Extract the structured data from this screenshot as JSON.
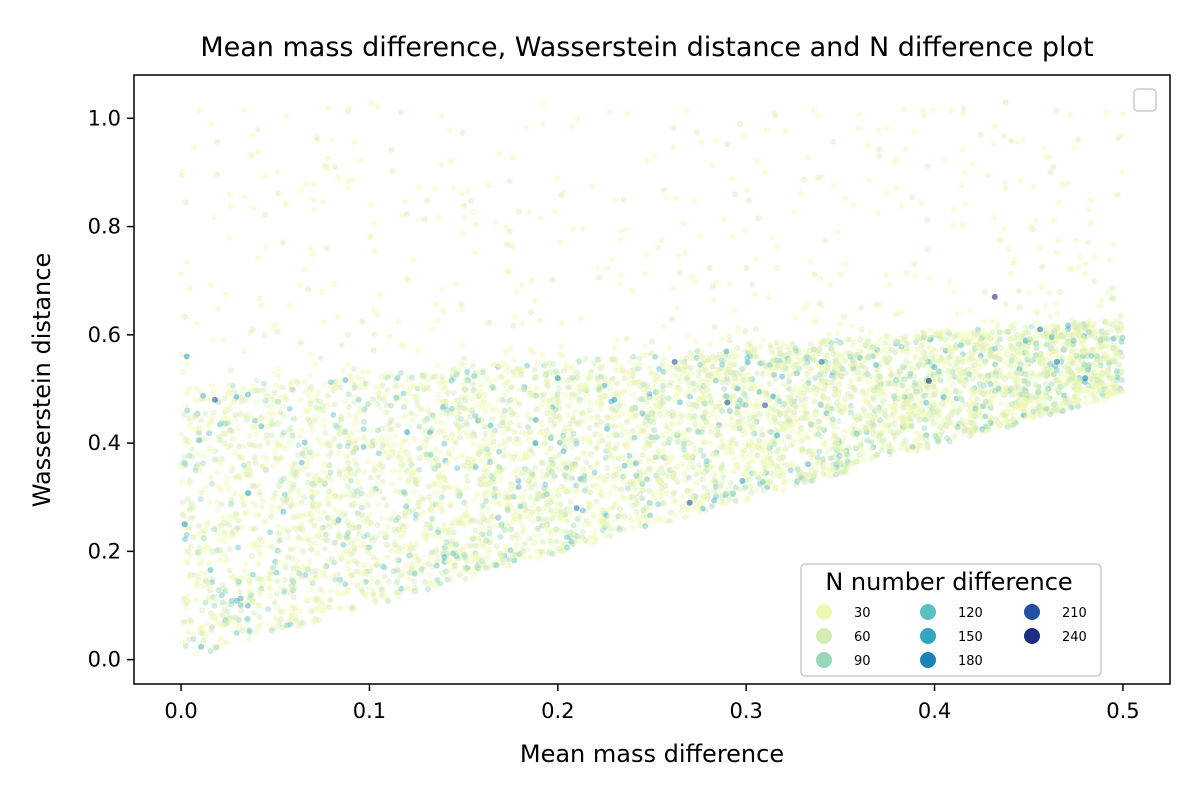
{
  "chart_data": {
    "type": "scatter",
    "title": "Mean mass difference, Wasserstein distance and N difference plot",
    "xlabel": "Mean mass difference",
    "ylabel": "Wasserstein distance",
    "xlim": [
      -0.025,
      0.525
    ],
    "ylim": [
      -0.045,
      1.08
    ],
    "xticks": [
      "0.0",
      "0.1",
      "0.2",
      "0.3",
      "0.4",
      "0.5"
    ],
    "yticks": [
      "0.0",
      "0.2",
      "0.4",
      "0.6",
      "0.8",
      "1.0"
    ],
    "grid": false,
    "legend_placement": "lower-right",
    "empty_legend_placement": "upper-right",
    "colorscale": "YlGnBu",
    "legend": {
      "title": "N number difference",
      "entries": [
        {
          "label": "30",
          "color": "#edf8b1"
        },
        {
          "label": "60",
          "color": "#d2ecb4"
        },
        {
          "label": "90",
          "color": "#97d6b9"
        },
        {
          "label": "120",
          "color": "#5bc0c0"
        },
        {
          "label": "150",
          "color": "#31a5c2"
        },
        {
          "label": "180",
          "color": "#1e80b8"
        },
        {
          "label": "210",
          "color": "#2350a2"
        },
        {
          "label": "240",
          "color": "#1e2e82"
        }
      ]
    },
    "distribution": {
      "x_range": [
        0.0,
        0.5
      ],
      "dense_band_lower": [
        [
          0.0,
          0.0
        ],
        [
          0.5,
          0.49
        ]
      ],
      "dense_band_upper": [
        [
          0.0,
          0.5
        ],
        [
          0.5,
          0.63
        ]
      ],
      "sparse_max_y": 1.03
    },
    "notable_points": [
      {
        "x": 0.003,
        "y": 0.56,
        "n": 150
      },
      {
        "x": 0.432,
        "y": 0.67,
        "n": 240
      },
      {
        "x": 0.262,
        "y": 0.55,
        "n": 210
      },
      {
        "x": 0.397,
        "y": 0.515,
        "n": 240
      },
      {
        "x": 0.29,
        "y": 0.475,
        "n": 210
      },
      {
        "x": 0.31,
        "y": 0.47,
        "n": 210
      },
      {
        "x": 0.27,
        "y": 0.29,
        "n": 210
      },
      {
        "x": 0.018,
        "y": 0.48,
        "n": 210
      },
      {
        "x": 0.456,
        "y": 0.61,
        "n": 180
      },
      {
        "x": 0.465,
        "y": 0.55,
        "n": 180
      },
      {
        "x": 0.48,
        "y": 0.52,
        "n": 180
      },
      {
        "x": 0.2,
        "y": 0.52,
        "n": 150
      },
      {
        "x": 0.34,
        "y": 0.55,
        "n": 180
      },
      {
        "x": 0.21,
        "y": 0.28,
        "n": 180
      },
      {
        "x": 0.002,
        "y": 0.25,
        "n": 150
      },
      {
        "x": 0.12,
        "y": 0.42,
        "n": 150
      },
      {
        "x": 0.298,
        "y": 0.33,
        "n": 150
      },
      {
        "x": 0.23,
        "y": 0.48,
        "n": 150
      },
      {
        "x": 0.188,
        "y": 0.4,
        "n": 150
      }
    ]
  }
}
